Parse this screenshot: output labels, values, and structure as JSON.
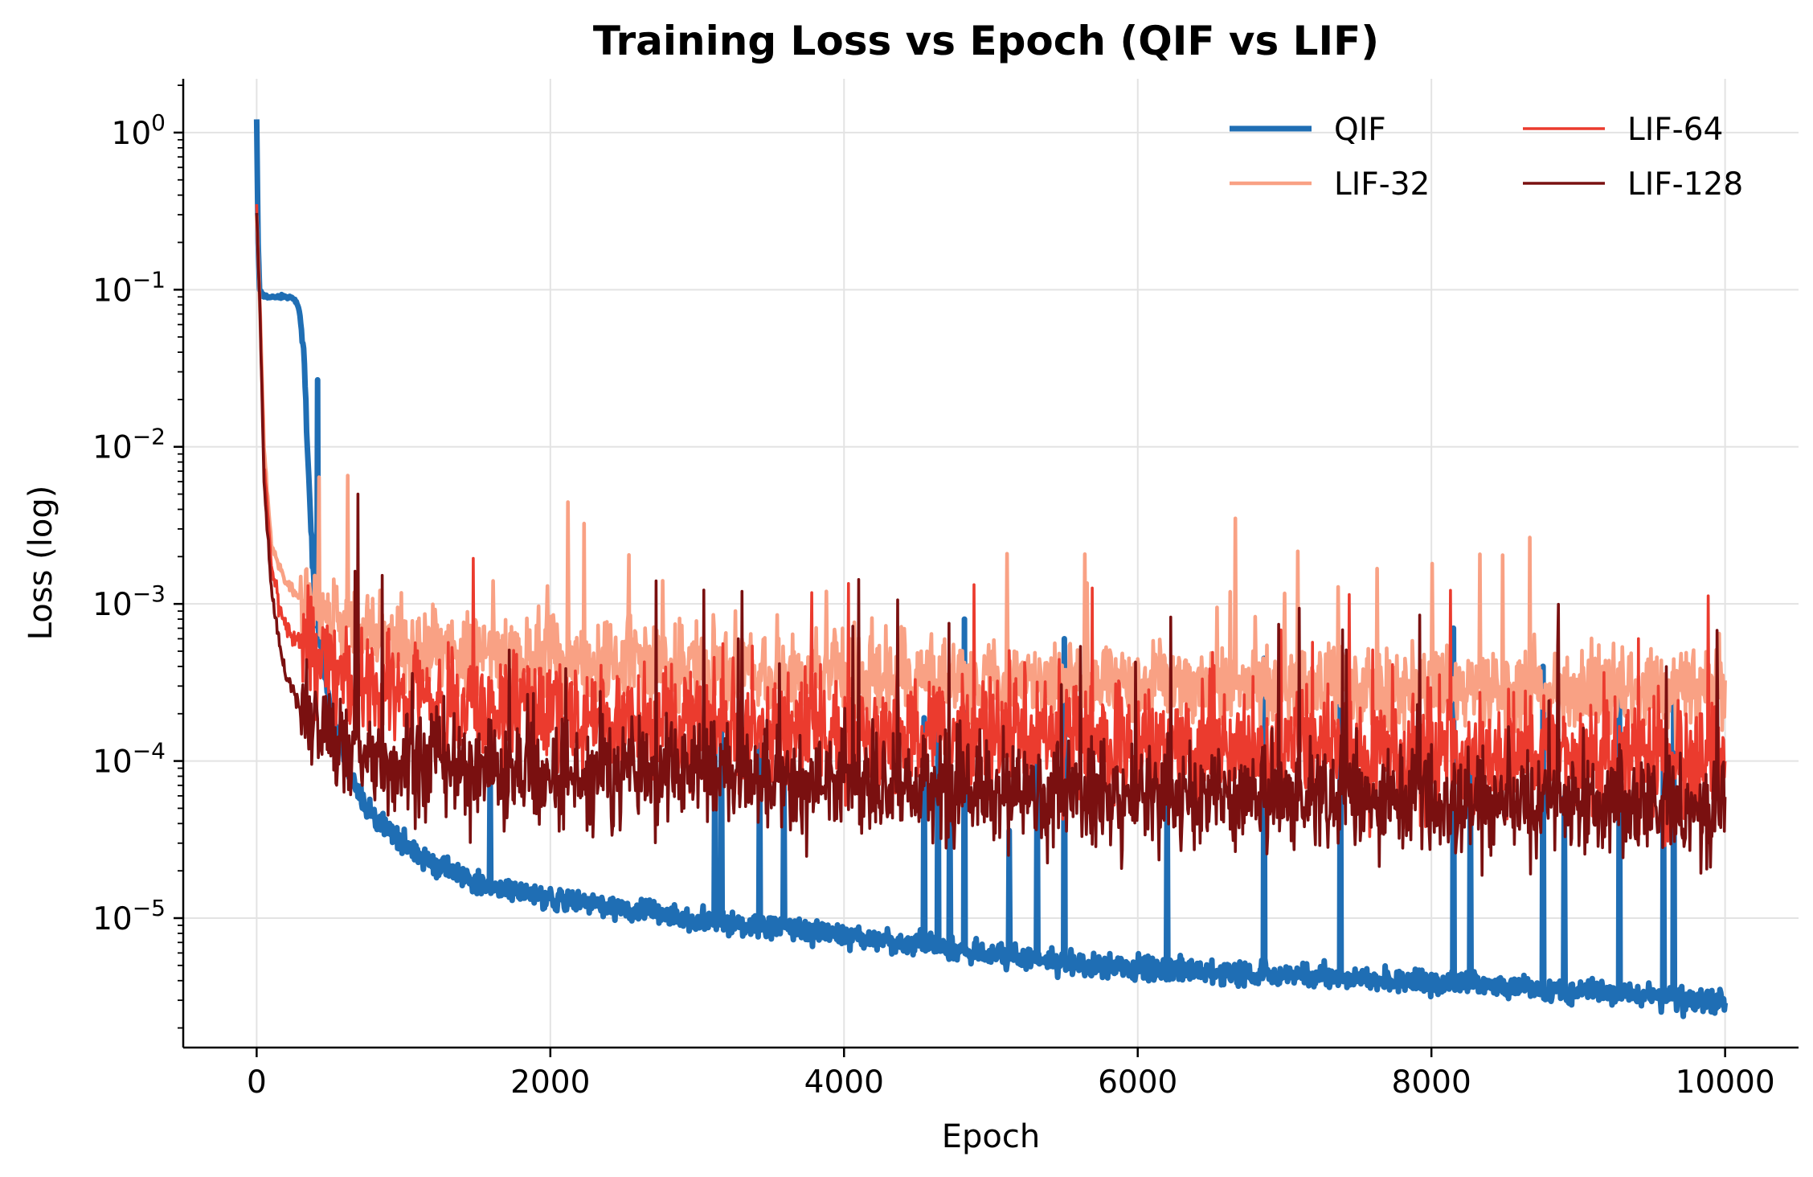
{
  "chart_data": {
    "type": "line",
    "title": "Training Loss vs Epoch (QIF vs LIF)",
    "xlabel": "Epoch",
    "ylabel": "Loss (log)",
    "xlim": [
      -500,
      10500
    ],
    "ylim": [
      1.5e-06,
      2.2
    ],
    "yscale": "log",
    "grid": true,
    "legend_position": "top-right",
    "legend_columns": 2,
    "x_ticks": [
      0,
      2000,
      4000,
      6000,
      8000,
      10000
    ],
    "x_tick_labels": [
      "0",
      "2000",
      "4000",
      "6000",
      "8000",
      "10000"
    ],
    "y_ticks": [
      {
        "value": 1,
        "base": "10",
        "exp": "0"
      },
      {
        "value": 0.1,
        "base": "10",
        "exp": "−1"
      },
      {
        "value": 0.01,
        "base": "10",
        "exp": "−2"
      },
      {
        "value": 0.001,
        "base": "10",
        "exp": "−3"
      },
      {
        "value": 0.0001,
        "base": "10",
        "exp": "−4"
      },
      {
        "value": 1e-05,
        "base": "10",
        "exp": "−5"
      }
    ],
    "series": [
      {
        "name": "QIF",
        "color": "#1f6eb4",
        "style": "thick",
        "x": [
          0,
          10,
          20,
          50,
          100,
          150,
          200,
          250,
          280,
          300,
          320,
          340,
          360,
          380,
          400,
          450,
          500,
          600,
          700,
          800,
          1000,
          1200,
          1400,
          1600,
          2000,
          2500,
          3000,
          3500,
          4000,
          4500,
          5000,
          5500,
          6000,
          6500,
          7000,
          7500,
          8000,
          8500,
          9000,
          9500,
          10000
        ],
        "y": [
          1.2,
          0.2,
          0.1,
          0.09,
          0.09,
          0.09,
          0.09,
          0.088,
          0.08,
          0.065,
          0.04,
          0.015,
          0.005,
          0.002,
          0.0009,
          0.00045,
          0.00022,
          0.0001,
          6e-05,
          4.3e-05,
          3e-05,
          2.2e-05,
          1.8e-05,
          1.6e-05,
          1.35e-05,
          1.15e-05,
          9.8e-06,
          8.8e-06,
          7.8e-06,
          6.8e-06,
          5.8e-06,
          5.2e-06,
          4.8e-06,
          4.5e-06,
          4.3e-06,
          4.1e-06,
          3.9e-06,
          3.7e-06,
          3.4e-06,
          3.2e-06,
          2.9e-06
        ],
        "noise": 0.08,
        "spike_rate": 0.0045,
        "spike_scale": 1.6,
        "peaks": [
          {
            "x": 4820,
            "y": 0.0008
          },
          {
            "x": 5500,
            "y": 0.0006
          },
          {
            "x": 8150,
            "y": 0.0007
          },
          {
            "x": 7380,
            "y": 0.00048
          },
          {
            "x": 6860,
            "y": 0.00045
          },
          {
            "x": 8760,
            "y": 0.0004
          },
          {
            "x": 3120,
            "y": 0.00012
          },
          {
            "x": 3590,
            "y": 0.0001
          },
          {
            "x": 4720,
            "y": 9e-05
          },
          {
            "x": 6200,
            "y": 8e-05
          },
          {
            "x": 9280,
            "y": 0.0003
          },
          {
            "x": 9650,
            "y": 0.00025
          }
        ]
      },
      {
        "name": "LIF-32",
        "color": "#f9a184",
        "style": "medium",
        "x": [
          0,
          20,
          50,
          100,
          150,
          200,
          300,
          400,
          500,
          600,
          800,
          1000,
          1500,
          2000,
          3000,
          4000,
          5000,
          6000,
          7000,
          8000,
          9000,
          10000
        ],
        "y": [
          0.3,
          0.09,
          0.01,
          0.0025,
          0.0017,
          0.0014,
          0.0011,
          0.00095,
          0.0008,
          0.00072,
          0.00062,
          0.00055,
          0.00048,
          0.00045,
          0.0004,
          0.00036,
          0.00034,
          0.00032,
          0.0003,
          0.00029,
          0.00028,
          0.00027
        ],
        "noise": 0.3,
        "spike_rate": 0.015,
        "spike_scale": 0.9,
        "peaks": [
          {
            "x": 1610,
            "y": 0.0014
          },
          {
            "x": 1980,
            "y": 0.0013
          },
          {
            "x": 3880,
            "y": 0.0012
          },
          {
            "x": 6540,
            "y": 0.00095
          }
        ]
      },
      {
        "name": "LIF-64",
        "color": "#eb3b2e",
        "style": "thin",
        "x": [
          0,
          20,
          50,
          100,
          150,
          200,
          300,
          400,
          500,
          600,
          800,
          1000,
          1500,
          2000,
          3000,
          4000,
          5000,
          6000,
          7000,
          8000,
          9000,
          10000
        ],
        "y": [
          0.3,
          0.09,
          0.008,
          0.0018,
          0.001,
          0.0007,
          0.00055,
          0.00045,
          0.0004,
          0.00035,
          0.0003,
          0.00026,
          0.00022,
          0.0002,
          0.00017,
          0.00015,
          0.00014,
          0.00013,
          0.00012,
          0.00011,
          0.00011,
          0.0001
        ],
        "noise": 0.4,
        "spike_rate": 0.015,
        "spike_scale": 1.0,
        "peaks": []
      },
      {
        "name": "LIF-128",
        "color": "#7a1010",
        "style": "thin",
        "x": [
          0,
          20,
          50,
          100,
          150,
          200,
          300,
          400,
          500,
          600,
          800,
          1000,
          1500,
          2000,
          3000,
          4000,
          5000,
          6000,
          7000,
          8000,
          9000,
          10000
        ],
        "y": [
          0.3,
          0.09,
          0.006,
          0.0012,
          0.0006,
          0.00035,
          0.00022,
          0.00017,
          0.00014,
          0.00012,
          0.0001,
          9.5e-05,
          9e-05,
          8.5e-05,
          8e-05,
          7.5e-05,
          6.5e-05,
          6e-05,
          5.8e-05,
          5.6e-05,
          5.5e-05,
          5.5e-05
        ],
        "noise": 0.35,
        "spike_rate": 0.014,
        "spike_scale": 1.1,
        "peaks": [
          {
            "x": 690,
            "y": 0.005
          },
          {
            "x": 2720,
            "y": 0.0014
          },
          {
            "x": 7920,
            "y": 0.00085
          },
          {
            "x": 3280,
            "y": 0.0006
          },
          {
            "x": 9950,
            "y": 0.00022
          }
        ]
      }
    ]
  }
}
